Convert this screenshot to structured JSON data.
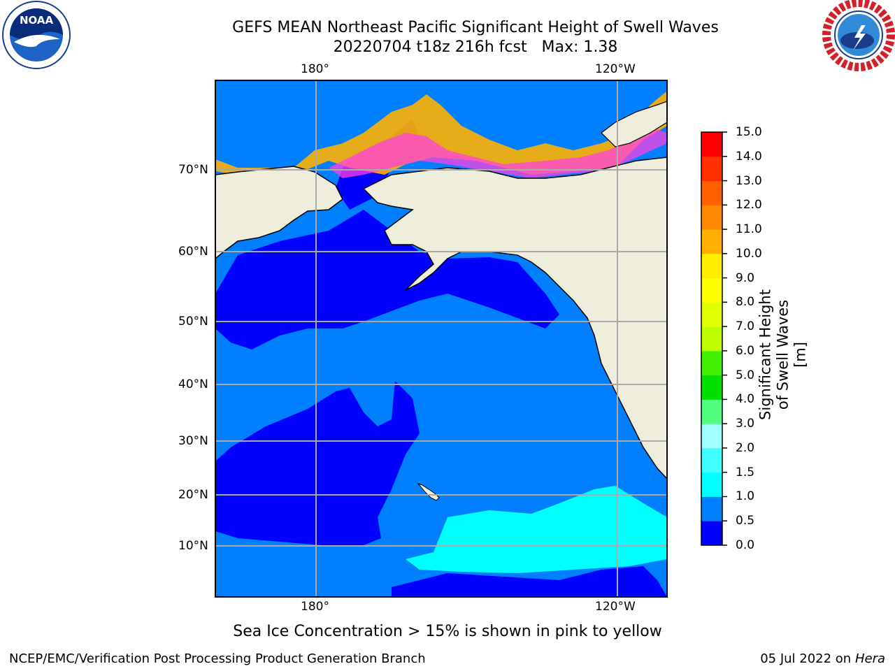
{
  "title": {
    "line1": "GEFS MEAN Northeast Pacific Significant Height of Swell Waves",
    "line2": "20220704 t18z 216h fcst   Max: 1.38"
  },
  "logos": {
    "left": "NOAA",
    "right": "NATIONAL WEATHER SERVICE"
  },
  "map": {
    "lon_labels_top": [
      "180°",
      "120°W"
    ],
    "lon_labels_bottom": [
      "180°",
      "120°W"
    ],
    "lat_labels": [
      "70°N",
      "60°N",
      "50°N",
      "40°N",
      "30°N",
      "20°N",
      "10°N"
    ]
  },
  "colorbar": {
    "title": "Significant Height of Swell Waves [m]",
    "ticks": [
      "15.0",
      "14.0",
      "13.0",
      "12.0",
      "11.0",
      "10.0",
      "9.0",
      "8.0",
      "7.0",
      "6.0",
      "5.0",
      "4.0",
      "3.0",
      "2.0",
      "1.5",
      "1.0",
      "0.5",
      "0.0"
    ],
    "colors": [
      "#0000ff",
      "#0080ff",
      "#00ffff",
      "#40ffff",
      "#a0ffff",
      "#50ff80",
      "#00e000",
      "#40f000",
      "#c0ff00",
      "#e0ff00",
      "#ffff00",
      "#ffee00",
      "#ffb000",
      "#ff8800",
      "#ff6000",
      "#ff3000",
      "#ff0000"
    ]
  },
  "note": "Sea Ice Concentration > 15% is shown in pink to yellow",
  "footer": {
    "left": "NCEP/EMC/Verification Post Processing Product Generation Branch",
    "right_date": "05 Jul 2022 on",
    "right_host": "Hera"
  }
}
